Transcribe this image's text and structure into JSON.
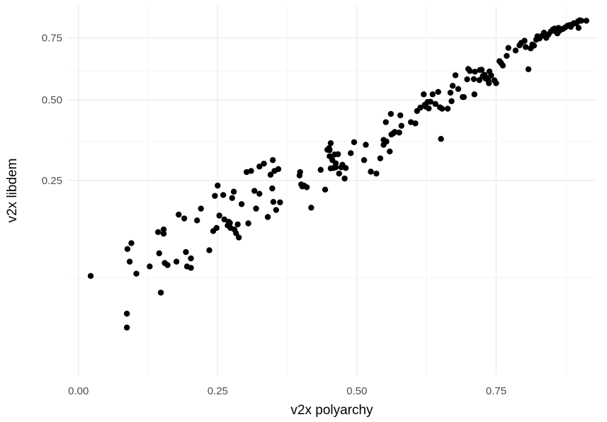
{
  "chart_data": {
    "type": "scatter",
    "title": "",
    "xlabel": "v2x polyarchy",
    "ylabel": "v2x libdem",
    "x_scale": "linear",
    "y_scale": "sqrt",
    "xlim": [
      -0.02,
      0.93
    ],
    "ylim": [
      0.0,
      0.9
    ],
    "x_ticks": [
      0.0,
      0.25,
      0.5,
      0.75
    ],
    "x_tick_labels": [
      "0.00",
      "0.25",
      "0.50",
      "0.75"
    ],
    "y_ticks": [
      0.25,
      0.5,
      0.75
    ],
    "y_tick_labels": [
      "0.25",
      "0.50",
      "0.75"
    ],
    "grid": true,
    "legend": "none",
    "point_color": "#000000",
    "grid_major_color": "#ebebeb",
    "grid_minor_color": "#f5f5f5",
    "points": [
      [
        0.022,
        0.065
      ],
      [
        0.087,
        0.015
      ],
      [
        0.087,
        0.025
      ],
      [
        0.088,
        0.105
      ],
      [
        0.092,
        0.085
      ],
      [
        0.095,
        0.115
      ],
      [
        0.104,
        0.068
      ],
      [
        0.128,
        0.078
      ],
      [
        0.145,
        0.098
      ],
      [
        0.143,
        0.135
      ],
      [
        0.148,
        0.045
      ],
      [
        0.153,
        0.14
      ],
      [
        0.153,
        0.132
      ],
      [
        0.155,
        0.083
      ],
      [
        0.16,
        0.08
      ],
      [
        0.176,
        0.085
      ],
      [
        0.18,
        0.17
      ],
      [
        0.19,
        0.162
      ],
      [
        0.193,
        0.1
      ],
      [
        0.195,
        0.078
      ],
      [
        0.202,
        0.09
      ],
      [
        0.202,
        0.076
      ],
      [
        0.213,
        0.158
      ],
      [
        0.22,
        0.183
      ],
      [
        0.235,
        0.103
      ],
      [
        0.242,
        0.137
      ],
      [
        0.245,
        0.212
      ],
      [
        0.248,
        0.143
      ],
      [
        0.25,
        0.237
      ],
      [
        0.253,
        0.168
      ],
      [
        0.26,
        0.214
      ],
      [
        0.262,
        0.16
      ],
      [
        0.268,
        0.148
      ],
      [
        0.27,
        0.155
      ],
      [
        0.272,
        0.153
      ],
      [
        0.273,
        0.143
      ],
      [
        0.276,
        0.207
      ],
      [
        0.279,
        0.222
      ],
      [
        0.28,
        0.14
      ],
      [
        0.283,
        0.133
      ],
      [
        0.286,
        0.15
      ],
      [
        0.288,
        0.125
      ],
      [
        0.293,
        0.193
      ],
      [
        0.302,
        0.272
      ],
      [
        0.305,
        0.152
      ],
      [
        0.31,
        0.275
      ],
      [
        0.316,
        0.224
      ],
      [
        0.319,
        0.183
      ],
      [
        0.325,
        0.217
      ],
      [
        0.325,
        0.287
      ],
      [
        0.333,
        0.295
      ],
      [
        0.34,
        0.165
      ],
      [
        0.345,
        0.265
      ],
      [
        0.348,
        0.23
      ],
      [
        0.349,
        0.305
      ],
      [
        0.35,
        0.198
      ],
      [
        0.352,
        0.275
      ],
      [
        0.355,
        0.18
      ],
      [
        0.359,
        0.28
      ],
      [
        0.362,
        0.197
      ],
      [
        0.397,
        0.263
      ],
      [
        0.398,
        0.272
      ],
      [
        0.4,
        0.24
      ],
      [
        0.402,
        0.235
      ],
      [
        0.405,
        0.237
      ],
      [
        0.41,
        0.233
      ],
      [
        0.418,
        0.185
      ],
      [
        0.435,
        0.278
      ],
      [
        0.443,
        0.227
      ],
      [
        0.447,
        0.335
      ],
      [
        0.45,
        0.34
      ],
      [
        0.451,
        0.316
      ],
      [
        0.451,
        0.334
      ],
      [
        0.453,
        0.282
      ],
      [
        0.453,
        0.355
      ],
      [
        0.456,
        0.305
      ],
      [
        0.458,
        0.283
      ],
      [
        0.46,
        0.321
      ],
      [
        0.462,
        0.285
      ],
      [
        0.462,
        0.296
      ],
      [
        0.466,
        0.322
      ],
      [
        0.468,
        0.268
      ],
      [
        0.472,
        0.285
      ],
      [
        0.474,
        0.292
      ],
      [
        0.478,
        0.255
      ],
      [
        0.48,
        0.283
      ],
      [
        0.489,
        0.325
      ],
      [
        0.495,
        0.358
      ],
      [
        0.513,
        0.305
      ],
      [
        0.516,
        0.35
      ],
      [
        0.525,
        0.273
      ],
      [
        0.535,
        0.268
      ],
      [
        0.542,
        0.31
      ],
      [
        0.548,
        0.35
      ],
      [
        0.548,
        0.365
      ],
      [
        0.553,
        0.36
      ],
      [
        0.552,
        0.422
      ],
      [
        0.559,
        0.33
      ],
      [
        0.561,
        0.45
      ],
      [
        0.562,
        0.382
      ],
      [
        0.565,
        0.385
      ],
      [
        0.568,
        0.39
      ],
      [
        0.576,
        0.388
      ],
      [
        0.578,
        0.445
      ],
      [
        0.58,
        0.41
      ],
      [
        0.597,
        0.422
      ],
      [
        0.605,
        0.418
      ],
      [
        0.608,
        0.46
      ],
      [
        0.614,
        0.472
      ],
      [
        0.62,
        0.52
      ],
      [
        0.622,
        0.482
      ],
      [
        0.624,
        0.475
      ],
      [
        0.627,
        0.492
      ],
      [
        0.629,
        0.469
      ],
      [
        0.632,
        0.493
      ],
      [
        0.636,
        0.52
      ],
      [
        0.641,
        0.485
      ],
      [
        0.646,
        0.529
      ],
      [
        0.649,
        0.473
      ],
      [
        0.651,
        0.368
      ],
      [
        0.653,
        0.468
      ],
      [
        0.663,
        0.468
      ],
      [
        0.668,
        0.526
      ],
      [
        0.67,
        0.495
      ],
      [
        0.672,
        0.552
      ],
      [
        0.677,
        0.593
      ],
      [
        0.682,
        0.54
      ],
      [
        0.69,
        0.51
      ],
      [
        0.692,
        0.51
      ],
      [
        0.698,
        0.577
      ],
      [
        0.7,
        0.618
      ],
      [
        0.703,
        0.61
      ],
      [
        0.71,
        0.578
      ],
      [
        0.711,
        0.52
      ],
      [
        0.712,
        0.607
      ],
      [
        0.72,
        0.574
      ],
      [
        0.721,
        0.614
      ],
      [
        0.724,
        0.615
      ],
      [
        0.726,
        0.59
      ],
      [
        0.729,
        0.595
      ],
      [
        0.731,
        0.58
      ],
      [
        0.734,
        0.583
      ],
      [
        0.737,
        0.562
      ],
      [
        0.738,
        0.608
      ],
      [
        0.741,
        0.592
      ],
      [
        0.747,
        0.573
      ],
      [
        0.756,
        0.65
      ],
      [
        0.759,
        0.642
      ],
      [
        0.762,
        0.632
      ],
      [
        0.769,
        0.672
      ],
      [
        0.772,
        0.706
      ],
      [
        0.785,
        0.695
      ],
      [
        0.792,
        0.717
      ],
      [
        0.795,
        0.728
      ],
      [
        0.801,
        0.737
      ],
      [
        0.803,
        0.71
      ],
      [
        0.812,
        0.704
      ],
      [
        0.815,
        0.721
      ],
      [
        0.818,
        0.716
      ],
      [
        0.822,
        0.742
      ],
      [
        0.824,
        0.757
      ],
      [
        0.828,
        0.748
      ],
      [
        0.83,
        0.756
      ],
      [
        0.833,
        0.76
      ],
      [
        0.836,
        0.773
      ],
      [
        0.838,
        0.764
      ],
      [
        0.84,
        0.75
      ],
      [
        0.844,
        0.765
      ],
      [
        0.848,
        0.778
      ],
      [
        0.852,
        0.788
      ],
      [
        0.855,
        0.792
      ],
      [
        0.858,
        0.776
      ],
      [
        0.86,
        0.77
      ],
      [
        0.862,
        0.795
      ],
      [
        0.864,
        0.782
      ],
      [
        0.866,
        0.79
      ],
      [
        0.87,
        0.79
      ],
      [
        0.874,
        0.797
      ],
      [
        0.878,
        0.805
      ],
      [
        0.882,
        0.808
      ],
      [
        0.884,
        0.8
      ],
      [
        0.888,
        0.813
      ],
      [
        0.89,
        0.817
      ],
      [
        0.894,
        0.816
      ],
      [
        0.897,
        0.825
      ],
      [
        0.9,
        0.83
      ],
      [
        0.903,
        0.828
      ],
      [
        0.898,
        0.795
      ],
      [
        0.912,
        0.828
      ],
      [
        0.808,
        0.617
      ],
      [
        0.736,
        0.573
      ],
      [
        0.75,
        0.562
      ]
    ]
  }
}
